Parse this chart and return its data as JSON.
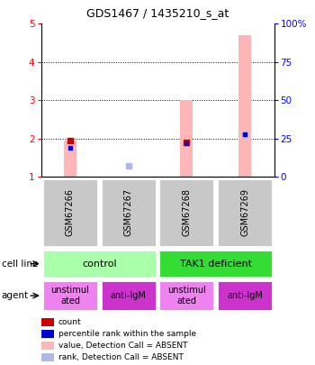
{
  "title": "GDS1467 / 1435210_s_at",
  "samples": [
    "GSM67266",
    "GSM67267",
    "GSM67268",
    "GSM67269"
  ],
  "ylim_left": [
    1,
    5
  ],
  "ylim_right": [
    0,
    100
  ],
  "yticks_left": [
    1,
    2,
    3,
    4,
    5
  ],
  "yticks_right": [
    0,
    25,
    50,
    75,
    100
  ],
  "count_values": [
    1.95,
    null,
    1.9,
    null
  ],
  "percentile_values": [
    1.77,
    null,
    1.87,
    2.12
  ],
  "absent_bar_values": [
    1.95,
    1.0,
    3.0,
    4.7
  ],
  "absent_rank_values": [
    null,
    1.3,
    null,
    2.12
  ],
  "bar_width": 0.22,
  "absent_bar_color": "#ffb6b6",
  "absent_rank_color": "#b0b8e8",
  "count_color": "#cc0000",
  "percentile_color": "#0000cc",
  "cell_line_colors": [
    "#aaffaa",
    "#33dd33"
  ],
  "agent_unstim_color": "#ee82ee",
  "agent_antilgm_color": "#cc33cc",
  "sample_bg_color": "#c8c8c8",
  "legend_items": [
    {
      "color": "#cc0000",
      "label": "count"
    },
    {
      "color": "#0000cc",
      "label": "percentile rank within the sample"
    },
    {
      "color": "#ffb6b6",
      "label": "value, Detection Call = ABSENT"
    },
    {
      "color": "#b0b8e8",
      "label": "rank, Detection Call = ABSENT"
    }
  ]
}
